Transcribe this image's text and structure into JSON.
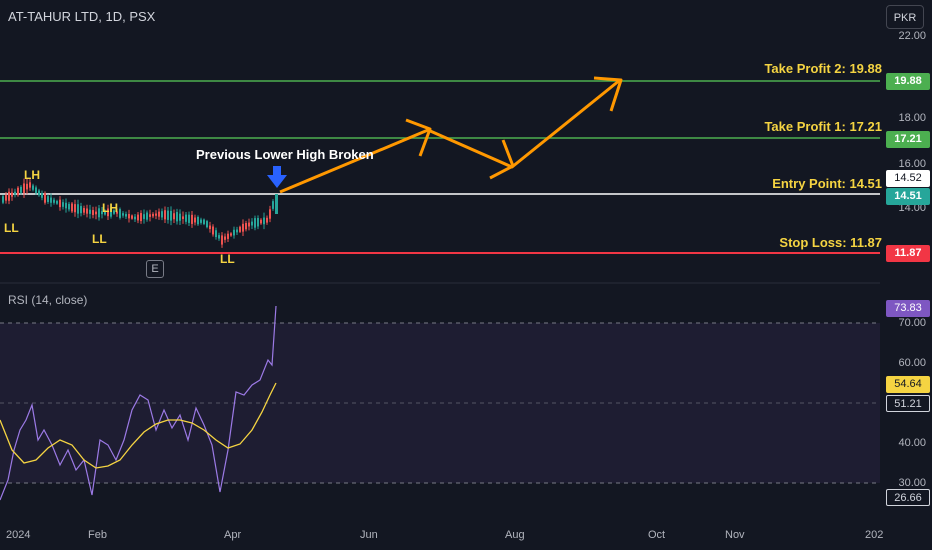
{
  "header": {
    "symbol_title": "AT-TAHUR LTD, 1D, PSX",
    "currency": "PKR"
  },
  "price_axis": {
    "ticks": [
      "22.00",
      "18.00",
      "16.00",
      "14.00"
    ]
  },
  "levels": {
    "take_profit_2": {
      "label": "Take Profit 2: 19.88",
      "badge": "19.88",
      "value": 19.88,
      "color": "#4caf50"
    },
    "take_profit_1": {
      "label": "Take Profit 1: 17.21",
      "badge": "17.21",
      "value": 17.21,
      "color": "#4caf50"
    },
    "entry": {
      "label": "Entry Point: 14.51",
      "badge": "14.51",
      "value": 14.51,
      "color": "#ffffff"
    },
    "last_price": {
      "badge": "14.52"
    },
    "stop_loss": {
      "label": "Stop Loss: 11.87",
      "badge": "11.87",
      "value": 11.87,
      "color": "#f23645"
    }
  },
  "annotations": {
    "breakout": "Previous Lower High Broken",
    "pivots": [
      "LH",
      "LL",
      "LH",
      "LL",
      "LL"
    ],
    "event_marker": "E"
  },
  "rsi": {
    "title": "RSI (14, close)",
    "ticks": [
      "70.00",
      "60.00",
      "40.00",
      "30.00"
    ],
    "rsi_badge": "73.83",
    "ma_badge": "54.64",
    "mid_badge": "51.21",
    "low_badge": "26.66",
    "rsi_color": "#9c7ae6",
    "ma_color": "#f5d442"
  },
  "time_axis": {
    "labels": [
      "2024",
      "Feb",
      "Apr",
      "Jun",
      "Aug",
      "Oct",
      "Nov",
      "202"
    ]
  },
  "colors": {
    "background": "#131722",
    "arrow": "#ff9800",
    "candle_up": "#26a69a",
    "candle_down": "#ef5350",
    "arrow_marker": "#2962ff"
  }
}
